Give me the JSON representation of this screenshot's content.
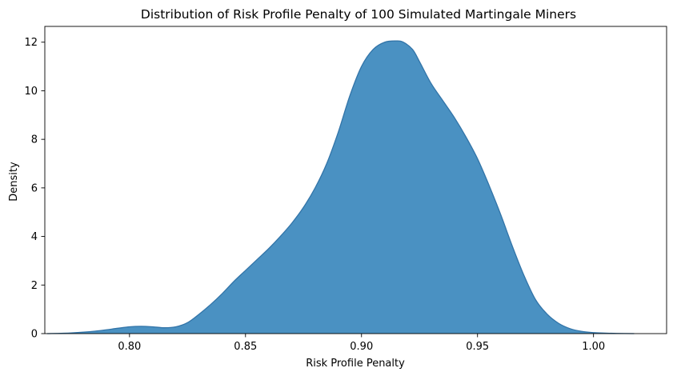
{
  "chart_data": {
    "type": "area",
    "title": "Distribution of Risk Profile Penalty of 100 Simulated Martingale Miners",
    "xlabel": "Risk Profile Penalty",
    "ylabel": "Density",
    "xlim": [
      0.7635,
      1.0315
    ],
    "ylim": [
      0,
      12.65
    ],
    "xticks": [
      0.8,
      0.85,
      0.9,
      0.95,
      1.0
    ],
    "xtick_labels": [
      "0.80",
      "0.85",
      "0.90",
      "0.95",
      "1.00"
    ],
    "yticks": [
      0,
      2,
      4,
      6,
      8,
      10,
      12
    ],
    "ytick_labels": [
      "0",
      "2",
      "4",
      "6",
      "8",
      "10",
      "12"
    ],
    "grid": false,
    "legend": "none",
    "fill_color": "#4a91c2",
    "line_color": "#3274a8",
    "series": [
      {
        "x": [
          0.7645,
          0.775,
          0.785,
          0.795,
          0.8,
          0.805,
          0.81,
          0.815,
          0.82,
          0.825,
          0.83,
          0.835,
          0.84,
          0.845,
          0.85,
          0.855,
          0.86,
          0.865,
          0.87,
          0.875,
          0.88,
          0.885,
          0.89,
          0.895,
          0.9,
          0.905,
          0.91,
          0.915,
          0.918,
          0.922,
          0.925,
          0.93,
          0.935,
          0.94,
          0.945,
          0.95,
          0.955,
          0.96,
          0.965,
          0.97,
          0.975,
          0.98,
          0.985,
          0.99,
          0.995,
          1.0,
          1.005,
          1.01,
          1.0175
        ],
        "y": [
          0.0,
          0.03,
          0.1,
          0.22,
          0.28,
          0.3,
          0.28,
          0.24,
          0.28,
          0.45,
          0.8,
          1.2,
          1.65,
          2.15,
          2.6,
          3.05,
          3.5,
          4.0,
          4.55,
          5.2,
          6.0,
          7.0,
          8.3,
          9.8,
          11.0,
          11.7,
          12.0,
          12.05,
          12.0,
          11.7,
          11.2,
          10.3,
          9.6,
          8.9,
          8.1,
          7.2,
          6.1,
          4.9,
          3.6,
          2.4,
          1.4,
          0.8,
          0.42,
          0.2,
          0.09,
          0.04,
          0.02,
          0.008,
          0.0
        ]
      }
    ]
  }
}
